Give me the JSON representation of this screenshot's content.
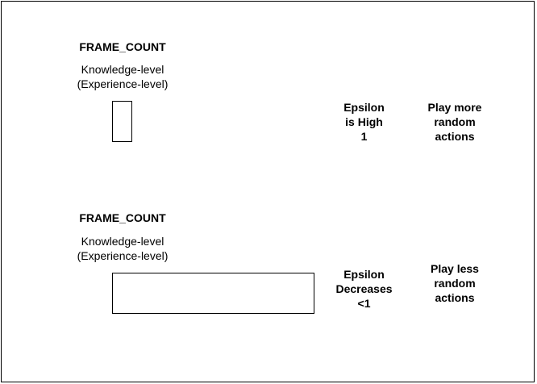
{
  "rows": [
    {
      "counter_label": "FRAME_COUNT",
      "knowledge_label": "Knowledge-level",
      "experience_label": "(Experience-level)",
      "bar_fill_fraction": 0.1,
      "epsilon_lines": [
        "Epsilon",
        "is High",
        "1"
      ],
      "action_lines": [
        "Play more",
        "random",
        "actions"
      ]
    },
    {
      "counter_label": "FRAME_COUNT",
      "knowledge_label": "Knowledge-level",
      "experience_label": "(Experience-level)",
      "bar_fill_fraction": 1.0,
      "epsilon_lines": [
        "Epsilon",
        "Decreases",
        "<1"
      ],
      "action_lines": [
        "Play less",
        "random",
        "actions"
      ]
    }
  ]
}
